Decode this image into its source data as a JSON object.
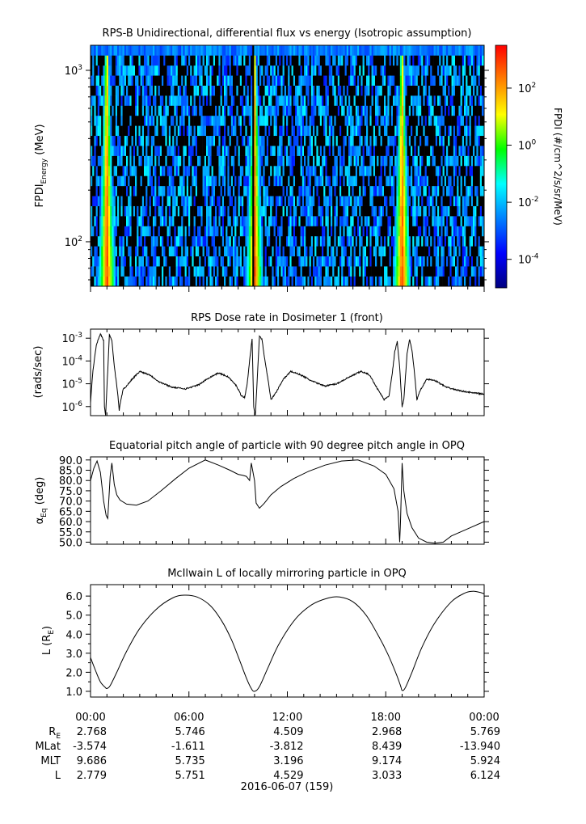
{
  "date_label": "2016-06-07 (159)",
  "x_ticks": [
    "00:00",
    "06:00",
    "12:00",
    "18:00",
    "00:00"
  ],
  "ephemeris": {
    "rows": [
      {
        "name_main": "R",
        "name_sub": "E",
        "values": [
          "2.768",
          "5.746",
          "4.509",
          "2.968",
          "5.769"
        ]
      },
      {
        "name_main": "MLat",
        "name_sub": "",
        "values": [
          "-3.574",
          "-1.611",
          "-3.812",
          "8.439",
          "-13.940"
        ]
      },
      {
        "name_main": "MLT",
        "name_sub": "",
        "values": [
          "9.686",
          "5.735",
          "3.196",
          "9.174",
          "5.924"
        ]
      },
      {
        "name_main": "L",
        "name_sub": "",
        "values": [
          "2.779",
          "5.751",
          "4.529",
          "3.033",
          "6.124"
        ]
      }
    ]
  },
  "colors": {
    "line": "#000000",
    "colormap": [
      "#00007f",
      "#0000ff",
      "#0080ff",
      "#00ffff",
      "#00ff00",
      "#ffff00",
      "#ff8000",
      "#ff0000"
    ]
  },
  "chart_data": [
    {
      "type": "heatmap",
      "title": "RPS-B  Unidirectional, differential flux vs energy (Isotropic assumption)",
      "ylabel": {
        "main": "FPDI",
        "sub": "Energy",
        "unit": "(MeV)"
      },
      "y_scale": "log",
      "y_ticks": [
        {
          "base": "10",
          "exp": "2",
          "value": 100
        },
        {
          "base": "10",
          "exp": "3",
          "value": 1000
        }
      ],
      "ylim": [
        55,
        1400
      ],
      "x_range_hours": [
        0,
        24
      ],
      "colorbar": {
        "label": "FPDI (#/cm^2/s/sr/MeV)",
        "scale": "log",
        "range_log10": [
          -5,
          3.5
        ],
        "ticks": [
          {
            "base": "10",
            "exp": "2",
            "value": 2
          },
          {
            "base": "10",
            "exp": "0",
            "value": 0
          },
          {
            "base": "10",
            "exp": "-2",
            "value": -2
          },
          {
            "base": "10",
            "exp": "-4",
            "value": -4
          }
        ]
      },
      "belt_crossings_hours": [
        1.0,
        10.0,
        19.0
      ],
      "data_gap_hours": [
        9.95
      ]
    },
    {
      "type": "line",
      "title": "RPS  Dose rate in Dosimeter 1 (front)",
      "ylabel": "(rads/sec)",
      "y_scale": "log",
      "y_ticks": [
        {
          "base": "10",
          "exp": "-3",
          "value": 0.001
        },
        {
          "base": "10",
          "exp": "-4",
          "value": 0.0001
        },
        {
          "base": "10",
          "exp": "-5",
          "value": 1e-05
        },
        {
          "base": "10",
          "exp": "-6",
          "value": 1e-06
        }
      ],
      "ylim": [
        4e-07,
        0.0025
      ],
      "x": [
        0.0,
        0.15,
        0.35,
        0.6,
        0.8,
        0.85,
        0.92,
        1.15,
        1.3,
        1.45,
        1.65,
        1.75,
        1.85,
        2.0,
        2.2,
        2.5,
        3.0,
        3.6,
        4.2,
        5.0,
        5.8,
        6.6,
        7.2,
        7.8,
        8.4,
        8.9,
        9.2,
        9.4,
        9.55,
        9.7,
        9.85,
        9.95,
        10.05,
        10.3,
        10.45,
        10.6,
        10.8,
        11.0,
        11.3,
        11.7,
        12.2,
        12.8,
        13.5,
        14.3,
        15.0,
        15.8,
        16.5,
        17.0,
        17.5,
        17.9,
        18.2,
        18.4,
        18.55,
        18.7,
        18.85,
        19.0,
        19.1,
        19.3,
        19.45,
        19.6,
        19.75,
        19.9,
        20.1,
        20.5,
        21.0,
        21.7,
        22.5,
        23.3,
        24.0
      ],
      "values": [
        1.5e-06,
        4e-05,
        0.0005,
        0.0016,
        0.0008,
        1e-06,
        4e-07,
        0.0014,
        0.0008,
        6e-05,
        4e-06,
        7e-07,
        2e-06,
        6e-06,
        8e-06,
        1.5e-05,
        3.5e-05,
        2.5e-05,
        1.2e-05,
        7e-06,
        6e-06,
        9e-06,
        1.8e-05,
        3e-05,
        2e-05,
        8e-06,
        3e-06,
        2.5e-06,
        1e-05,
        0.0001,
        0.001,
        1e-06,
        4e-07,
        0.0013,
        0.0009,
        0.00015,
        2e-05,
        2e-06,
        4e-06,
        1.4e-05,
        3.5e-05,
        2.5e-05,
        1.3e-05,
        8e-06,
        1e-05,
        2e-05,
        3.5e-05,
        2.5e-05,
        6e-06,
        2e-06,
        3e-06,
        3e-05,
        0.00025,
        0.0007,
        5e-05,
        1e-06,
        2e-06,
        0.0002,
        0.0009,
        0.0003,
        3e-05,
        2e-06,
        5e-06,
        1.6e-05,
        1.4e-05,
        7e-06,
        5e-06,
        4e-06,
        3.5e-06
      ]
    },
    {
      "type": "line",
      "title": "Equatorial pitch angle of particle with 90 degree pitch angle in OPQ",
      "ylabel": {
        "main": "α",
        "sub": "Eq",
        "unit": "(deg)"
      },
      "y_ticks": [
        50,
        55,
        60,
        65,
        70,
        75,
        80,
        85,
        90
      ],
      "ylim": [
        49,
        91.5
      ],
      "x": [
        0.0,
        0.2,
        0.4,
        0.6,
        0.8,
        0.95,
        1.05,
        1.2,
        1.3,
        1.45,
        1.6,
        1.8,
        2.2,
        2.8,
        3.5,
        4.3,
        5.2,
        6.0,
        7.0,
        7.8,
        8.5,
        9.0,
        9.3,
        9.5,
        9.7,
        9.8,
        10.0,
        10.1,
        10.3,
        10.6,
        11.0,
        11.6,
        12.4,
        13.3,
        14.3,
        15.3,
        16.3,
        17.3,
        18.0,
        18.5,
        18.75,
        18.85,
        18.9,
        19.0,
        19.1,
        19.3,
        19.6,
        20.0,
        20.5,
        21.0,
        21.5,
        22.0,
        23.0,
        24.0
      ],
      "values": [
        80,
        86,
        89.5,
        84,
        70,
        63,
        61.5,
        82,
        88.5,
        78,
        73,
        70.5,
        68.5,
        68,
        70,
        75,
        81,
        86,
        90,
        87.5,
        85,
        83,
        82.5,
        82,
        80,
        88.5,
        80,
        69,
        66.5,
        69,
        73,
        77,
        81,
        84.5,
        87.5,
        89.5,
        90,
        87,
        83,
        76,
        65,
        50,
        60,
        88.5,
        75,
        64,
        57,
        52,
        50,
        49.5,
        50,
        53,
        56.5,
        60
      ]
    },
    {
      "type": "line",
      "title": "McIlwain L of locally mirroring particle in OPQ",
      "ylabel": {
        "main": "L (R",
        "sub": "E",
        "unit": ")"
      },
      "y_ticks": [
        1,
        2,
        3,
        4,
        5,
        6
      ],
      "ylim": [
        0.7,
        6.6
      ],
      "x": [
        0.0,
        0.3,
        0.6,
        0.9,
        1.0,
        1.2,
        1.6,
        2.2,
        3.0,
        4.0,
        5.0,
        5.7,
        6.5,
        7.3,
        8.0,
        8.6,
        9.1,
        9.5,
        9.8,
        10.0,
        10.3,
        10.8,
        11.5,
        12.5,
        13.5,
        14.5,
        15.2,
        16.0,
        16.8,
        17.5,
        18.1,
        18.6,
        18.9,
        19.0,
        19.2,
        19.6,
        20.2,
        21.0,
        22.0,
        22.8,
        23.3,
        23.7,
        24.0
      ],
      "values": [
        2.77,
        2.1,
        1.5,
        1.2,
        1.15,
        1.3,
        2.0,
        3.1,
        4.3,
        5.3,
        5.9,
        6.05,
        5.95,
        5.5,
        4.7,
        3.7,
        2.6,
        1.7,
        1.15,
        1.0,
        1.25,
        2.2,
        3.5,
        4.8,
        5.55,
        5.9,
        5.95,
        5.7,
        5.0,
        4.0,
        3.0,
        2.0,
        1.3,
        1.05,
        1.2,
        2.0,
        3.3,
        4.6,
        5.7,
        6.15,
        6.25,
        6.2,
        6.12
      ]
    }
  ]
}
